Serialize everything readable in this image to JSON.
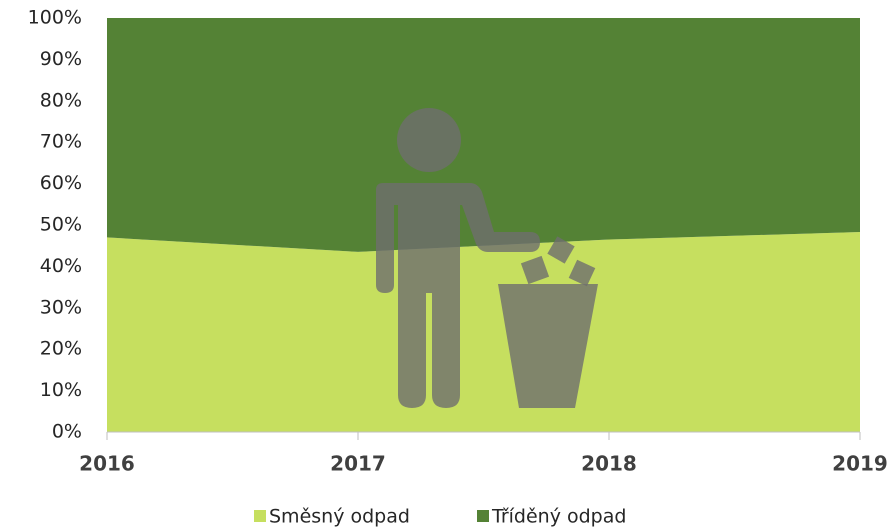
{
  "chart_data": {
    "type": "area",
    "stacked": true,
    "categories": [
      "2016",
      "2017",
      "2018",
      "2019"
    ],
    "series": [
      {
        "name": "Směsný odpad",
        "color": "#c6df5f",
        "values": [
          47,
          43.5,
          46.5,
          48.3
        ]
      },
      {
        "name": "Tříděný odpad",
        "color": "#548235",
        "values": [
          53,
          56.5,
          53.5,
          51.7
        ]
      }
    ],
    "ylim": [
      0,
      100
    ],
    "yticks": [
      {
        "value": 0,
        "label": "0%"
      },
      {
        "value": 10,
        "label": "10%"
      },
      {
        "value": 20,
        "label": "20%"
      },
      {
        "value": 30,
        "label": "30%"
      },
      {
        "value": 40,
        "label": "40%"
      },
      {
        "value": 50,
        "label": "50%"
      },
      {
        "value": 60,
        "label": "60%"
      },
      {
        "value": 70,
        "label": "70%"
      },
      {
        "value": 80,
        "label": "80%"
      },
      {
        "value": 90,
        "label": "90%"
      },
      {
        "value": 100,
        "label": "100%"
      }
    ],
    "legend": "bottom"
  }
}
